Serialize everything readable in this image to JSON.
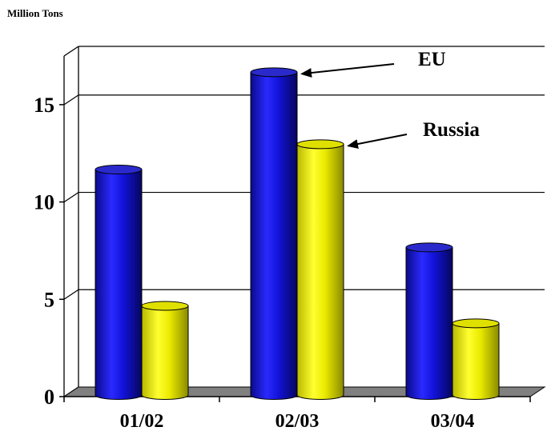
{
  "chart_data": {
    "type": "bar",
    "title": "",
    "ylabel": "Million Tons",
    "xlabel": "",
    "categories": [
      "01/02",
      "02/03",
      "03/04"
    ],
    "series": [
      {
        "name": "EU",
        "values": [
          11.5,
          16.5,
          7.5
        ],
        "color": "#1515E6"
      },
      {
        "name": "Russia",
        "values": [
          4.5,
          12.8,
          3.6
        ],
        "color": "#F2F200"
      }
    ],
    "ylim": [
      0,
      17.5
    ],
    "yticks": [
      0,
      5,
      10,
      15
    ],
    "grid": true,
    "legend": "callout-arrows"
  }
}
